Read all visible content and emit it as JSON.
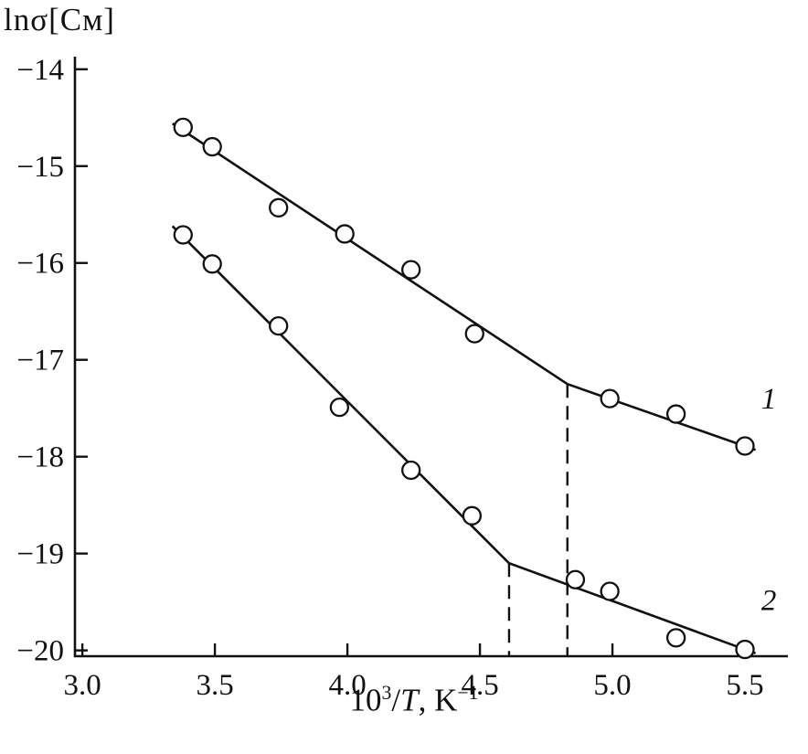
{
  "chart_data": {
    "type": "scatter",
    "title": "",
    "ylabel": "lnσ[См]",
    "xlabel": "10^3/T, K^-1",
    "ylabel_display": "lnσ[См]",
    "xlabel_parts": {
      "base": "10",
      "exp": "3",
      "slash": "/",
      "var": "T",
      "unit": ", K",
      "unit_exp": "−1"
    },
    "xlim": [
      2.972,
      5.662
    ],
    "ylim": [
      -20.06,
      -13.87
    ],
    "grid": false,
    "legend_position": "none",
    "x_ticks": [
      3.0,
      3.5,
      4.0,
      4.5,
      5.0,
      5.5
    ],
    "x_tick_labels": [
      "3.0",
      "3.5",
      "4.0",
      "4.5",
      "5.0",
      "5.5"
    ],
    "y_ticks": [
      -14,
      -15,
      -16,
      -17,
      -18,
      -19,
      -20
    ],
    "y_tick_labels": [
      "−14",
      "−15",
      "−16",
      "−17",
      "−18",
      "−19",
      "−20"
    ],
    "line_color": "#111111",
    "marker": {
      "shape": "open-circle",
      "radius": 9.5,
      "fill": "#ffffff",
      "stroke": "#111111"
    },
    "series": [
      {
        "name": "1",
        "points": [
          [
            3.38,
            -14.6
          ],
          [
            3.49,
            -14.8
          ],
          [
            3.74,
            -15.43
          ],
          [
            3.99,
            -15.7
          ],
          [
            4.24,
            -16.07
          ],
          [
            4.48,
            -16.73
          ],
          [
            4.99,
            -17.4
          ],
          [
            5.24,
            -17.56
          ],
          [
            5.5,
            -17.89
          ]
        ],
        "fit": [
          [
            3.34,
            -14.56
          ],
          [
            4.83,
            -17.25
          ],
          [
            5.54,
            -17.93
          ]
        ]
      },
      {
        "name": "2",
        "points": [
          [
            3.38,
            -15.71
          ],
          [
            3.49,
            -16.01
          ],
          [
            3.74,
            -16.65
          ],
          [
            3.97,
            -17.49
          ],
          [
            4.24,
            -18.14
          ],
          [
            4.47,
            -18.61
          ],
          [
            4.86,
            -19.27
          ],
          [
            4.99,
            -19.39
          ],
          [
            5.24,
            -19.87
          ],
          [
            5.5,
            -19.99
          ]
        ],
        "fit": [
          [
            3.34,
            -15.62
          ],
          [
            4.61,
            -19.1
          ],
          [
            5.54,
            -20.03
          ]
        ]
      }
    ],
    "break_lines": [
      {
        "x": 4.61,
        "y_top": -19.1
      },
      {
        "x": 4.83,
        "y_top": -17.25
      }
    ],
    "curve_labels": [
      {
        "text": "1",
        "x": 5.59,
        "y": -17.4
      },
      {
        "text": "2",
        "x": 5.59,
        "y": -19.48
      }
    ]
  }
}
